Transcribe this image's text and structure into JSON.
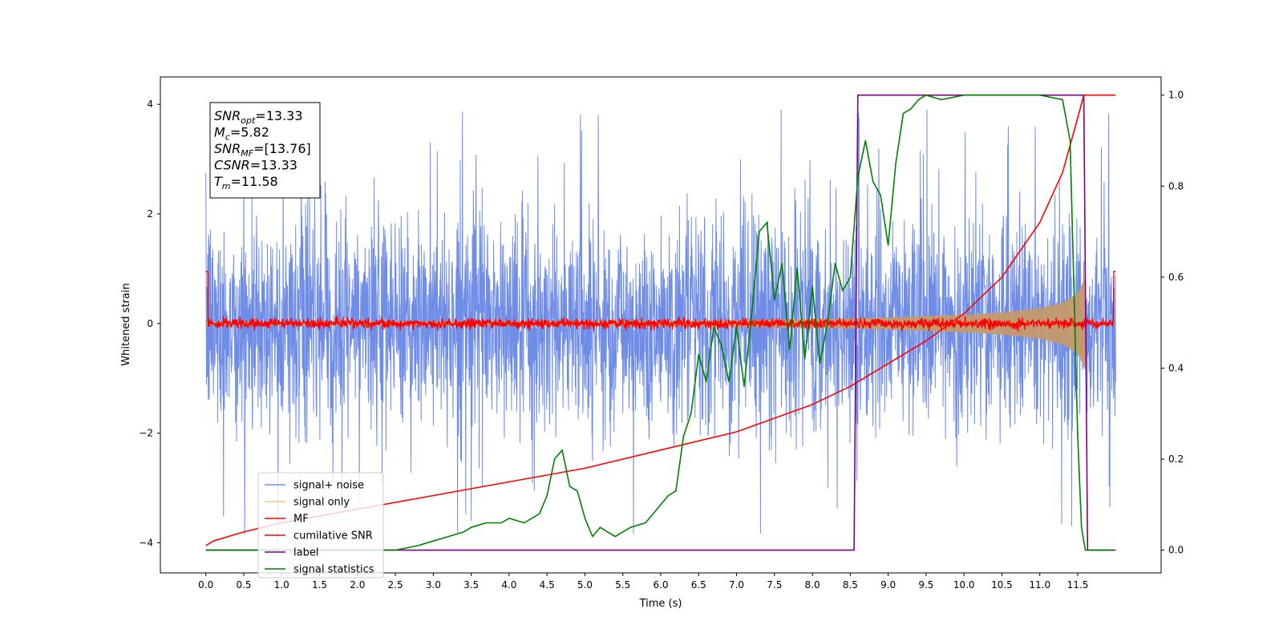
{
  "chart_data": {
    "type": "line",
    "xlabel": "Time (s)",
    "ylabel": "Whitened strain",
    "xlim": [
      -0.6,
      12.6
    ],
    "ylim": [
      -4.55,
      4.5
    ],
    "ylim_right": [
      -0.05,
      1.04
    ],
    "x_ticks": [
      0.0,
      0.5,
      1.0,
      1.5,
      2.0,
      2.5,
      3.0,
      3.5,
      4.0,
      4.5,
      5.0,
      5.5,
      6.0,
      6.5,
      7.0,
      7.5,
      8.0,
      8.5,
      9.0,
      9.5,
      10.0,
      10.5,
      11.0,
      11.5
    ],
    "x_tick_labels": [
      "0.0",
      "0.5",
      "1.0",
      "1.5",
      "2.0",
      "2.5",
      "3.0",
      "3.5",
      "4.0",
      "4.5",
      "5.0",
      "5.5",
      "6.0",
      "6.5",
      "7.0",
      "7.5",
      "8.0",
      "8.5",
      "9.0",
      "9.5",
      "10.0",
      "10.5",
      "11.0",
      "11.5"
    ],
    "y_ticks_left": [
      -4,
      -2,
      0,
      2,
      4
    ],
    "y_tick_labels_left": [
      "−4",
      "−2",
      "0",
      "2",
      "4"
    ],
    "y_ticks_right": [
      0.0,
      0.2,
      0.4,
      0.6,
      0.8,
      1.0
    ],
    "y_tick_labels_right": [
      "0.0",
      "0.2",
      "0.4",
      "0.6",
      "0.8",
      "1.0"
    ],
    "legend_position": "lower-left",
    "annotation": {
      "lines": [
        {
          "base": "SNR",
          "sub": "opt",
          "value": "=13.33"
        },
        {
          "base": "M",
          "sub": "c",
          "value": "=5.82"
        },
        {
          "base": "SNR",
          "sub": "MF",
          "value": "=[13.76]"
        },
        {
          "base": "CSNR",
          "sub": "",
          "value": "=13.33"
        },
        {
          "base": "T",
          "sub": "m",
          "value": "=11.58"
        }
      ]
    },
    "series": [
      {
        "name": "signal+ noise",
        "axis": "left",
        "color": "#6f8de6",
        "kind": "noise",
        "x_range": [
          0.0,
          12.0
        ],
        "envelope_typical": 1.8,
        "envelope_peak": 3.9
      },
      {
        "name": "signal only",
        "axis": "left",
        "color": "#f5c97a",
        "kind": "envelope",
        "x": [
          0.0,
          2.0,
          4.0,
          6.0,
          7.0,
          8.0,
          9.0,
          10.0,
          10.5,
          11.0,
          11.3,
          11.5,
          11.6
        ],
        "amplitude": [
          0.03,
          0.035,
          0.04,
          0.05,
          0.06,
          0.08,
          0.11,
          0.16,
          0.2,
          0.28,
          0.38,
          0.55,
          0.85
        ]
      },
      {
        "name": "MF",
        "axis": "left",
        "color": "#ff0000",
        "kind": "noise",
        "x_range": [
          0.0,
          12.0
        ],
        "envelope_typical": 0.1,
        "envelope_peak": 0.3
      },
      {
        "name": "cumilative SNR",
        "axis": "right",
        "color": "#ff0000",
        "x": [
          0.0,
          0.1,
          0.5,
          1.0,
          2.0,
          3.0,
          4.0,
          5.0,
          6.0,
          7.0,
          8.0,
          8.5,
          9.0,
          9.5,
          10.0,
          10.5,
          11.0,
          11.3,
          11.5,
          11.58,
          12.0
        ],
        "y": [
          0.01,
          0.02,
          0.04,
          0.06,
          0.09,
          0.12,
          0.15,
          0.18,
          0.22,
          0.26,
          0.32,
          0.36,
          0.41,
          0.46,
          0.52,
          0.6,
          0.72,
          0.83,
          0.95,
          1.0,
          1.0
        ]
      },
      {
        "name": "label",
        "axis": "right",
        "color": "#800080",
        "x": [
          0.0,
          8.55,
          8.6,
          11.58,
          11.63,
          12.0
        ],
        "y": [
          0.0,
          0.0,
          1.0,
          1.0,
          0.0,
          0.0
        ]
      },
      {
        "name": "signal statistics",
        "axis": "right",
        "color": "#008000",
        "x": [
          0.0,
          0.5,
          1.0,
          1.5,
          2.0,
          2.5,
          2.8,
          3.0,
          3.2,
          3.4,
          3.5,
          3.7,
          3.9,
          4.0,
          4.2,
          4.4,
          4.5,
          4.6,
          4.7,
          4.8,
          4.9,
          5.0,
          5.1,
          5.2,
          5.3,
          5.4,
          5.6,
          5.8,
          6.0,
          6.1,
          6.2,
          6.3,
          6.4,
          6.5,
          6.6,
          6.7,
          6.8,
          6.9,
          7.0,
          7.1,
          7.2,
          7.3,
          7.4,
          7.5,
          7.6,
          7.7,
          7.8,
          7.9,
          8.0,
          8.1,
          8.2,
          8.3,
          8.4,
          8.5,
          8.6,
          8.7,
          8.8,
          8.9,
          9.0,
          9.1,
          9.2,
          9.3,
          9.4,
          9.5,
          9.7,
          10.0,
          10.5,
          11.0,
          11.3,
          11.4,
          11.5,
          11.55,
          11.6,
          11.65,
          11.7,
          11.8,
          11.95
        ],
        "y": [
          0.0,
          0.0,
          0.0,
          0.0,
          0.0,
          0.0,
          0.01,
          0.02,
          0.03,
          0.04,
          0.05,
          0.06,
          0.06,
          0.07,
          0.06,
          0.08,
          0.12,
          0.2,
          0.22,
          0.14,
          0.13,
          0.07,
          0.03,
          0.05,
          0.04,
          0.03,
          0.05,
          0.06,
          0.1,
          0.12,
          0.13,
          0.25,
          0.3,
          0.43,
          0.37,
          0.49,
          0.45,
          0.37,
          0.49,
          0.36,
          0.52,
          0.7,
          0.72,
          0.55,
          0.63,
          0.44,
          0.62,
          0.42,
          0.58,
          0.41,
          0.5,
          0.63,
          0.57,
          0.6,
          0.82,
          0.9,
          0.81,
          0.78,
          0.67,
          0.85,
          0.96,
          0.97,
          0.99,
          1.0,
          0.99,
          1.0,
          1.0,
          1.0,
          0.99,
          0.9,
          0.25,
          0.05,
          0.0,
          0.0,
          0.0,
          0.0,
          0.0
        ]
      }
    ]
  }
}
